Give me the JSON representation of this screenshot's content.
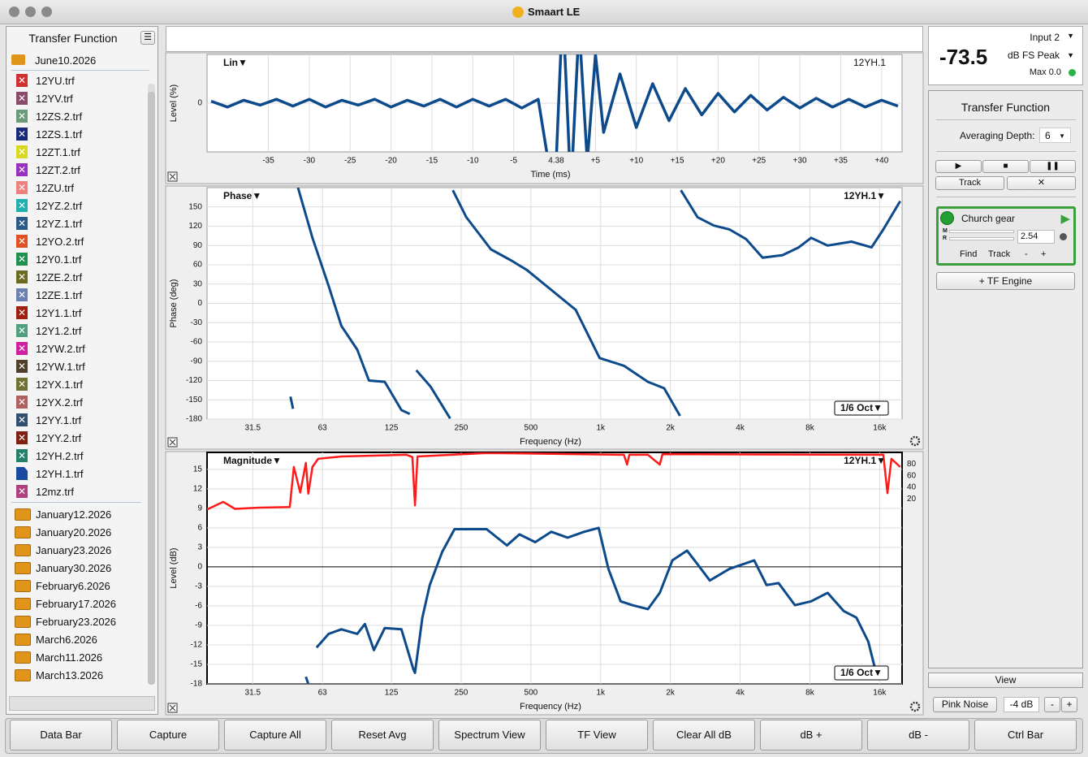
{
  "window": {
    "title": "Smaart LE"
  },
  "sidebar": {
    "title": "Transfer Function",
    "open_folder": "June10.2026",
    "files": [
      {
        "name": "12YU.trf",
        "color": "#d03030"
      },
      {
        "name": "12YV.trf",
        "color": "#8a4a6a"
      },
      {
        "name": "12ZS.2.trf",
        "color": "#6a9a7a"
      },
      {
        "name": "12ZS.1.trf",
        "color": "#1a2a7a"
      },
      {
        "name": "12ZT.1.trf",
        "color": "#d8d820"
      },
      {
        "name": "12ZT.2.trf",
        "color": "#9a30c0"
      },
      {
        "name": "12ZU.trf",
        "color": "#f08080"
      },
      {
        "name": "12YZ.2.trf",
        "color": "#20b0b0"
      },
      {
        "name": "12YZ.1.trf",
        "color": "#2a5a8a"
      },
      {
        "name": "12YO.2.trf",
        "color": "#e05020"
      },
      {
        "name": "12Y0.1.trf",
        "color": "#209050"
      },
      {
        "name": "12ZE.2.trf",
        "color": "#6a6a20"
      },
      {
        "name": "12ZE.1.trf",
        "color": "#6a80b0"
      },
      {
        "name": "12Y1.1.trf",
        "color": "#a02010"
      },
      {
        "name": "12Y1.2.trf",
        "color": "#50a080"
      },
      {
        "name": "12YW.2.trf",
        "color": "#d020a0"
      },
      {
        "name": "12YW.1.trf",
        "color": "#50402a"
      },
      {
        "name": "12YX.1.trf",
        "color": "#707030"
      },
      {
        "name": "12YX.2.trf",
        "color": "#b06060"
      },
      {
        "name": "12YY.1.trf",
        "color": "#305070"
      },
      {
        "name": "12YY.2.trf",
        "color": "#802010"
      },
      {
        "name": "12YH.2.trf",
        "color": "#20806a"
      },
      {
        "name": "12YH.1.trf",
        "color": "#1a4aa0"
      },
      {
        "name": "12mz.trf",
        "color": "#b04080"
      }
    ],
    "folders": [
      "January12.2026",
      "January20.2026",
      "January23.2026",
      "January30.2026",
      "February6.2026",
      "February17.2026",
      "February23.2026",
      "March6.2026",
      "March11.2026",
      "March13.2026"
    ]
  },
  "meters": {
    "input": "Input 2",
    "level": -73.5,
    "unit": "dB FS Peak",
    "max": "Max 0.0"
  },
  "control_panel": {
    "title": "Transfer Function",
    "averaging_label": "Averaging Depth:",
    "averaging_value": 6,
    "track_button": "Track",
    "engine": {
      "name": "Church gear",
      "m": "M",
      "r": "R",
      "delay": 2.54,
      "find": "Find",
      "track": "Track",
      "minus": "-",
      "plus": "+"
    },
    "add_engine": "+ TF Engine",
    "view": "View",
    "generator": "Pink Noise",
    "gen_level": "-4 dB",
    "gen_minus": "-",
    "gen_plus": "+"
  },
  "toolbar": [
    "Data Bar",
    "Capture",
    "Capture All",
    "Reset Avg",
    "Spectrum View",
    "TF View",
    "Clear All dB",
    "dB +",
    "dB -",
    "Ctrl Bar"
  ],
  "impulse": {
    "type": "line",
    "mode": "Lin▼",
    "trace": "12YH.1",
    "y_label": "Level (%)",
    "x_label": "Time (ms)",
    "marker": "4.38",
    "color": "#0d4a8c",
    "xlim": [
      -42.5,
      42.5
    ],
    "xticks": [
      -35,
      -30,
      -25,
      -20,
      -15,
      -10,
      -5,
      {
        "value": 5,
        "label": "+5"
      },
      {
        "value": 10,
        "label": "+10"
      },
      {
        "value": 15,
        "label": "+15"
      },
      {
        "value": 20,
        "label": "+20"
      },
      {
        "value": 25,
        "label": "+25"
      },
      {
        "value": 30,
        "label": "+30"
      },
      {
        "value": 35,
        "label": "+35"
      },
      {
        "value": 40,
        "label": "+40"
      }
    ],
    "ylim": [
      -50,
      50
    ],
    "yticks": [
      0
    ],
    "x": [
      -42,
      -40,
      -38,
      -36,
      -34,
      -32,
      -30,
      -28,
      -26,
      -24,
      -22,
      -20,
      -18,
      -16,
      -14,
      -12,
      -10,
      -8,
      -6,
      -4,
      -2,
      0,
      1,
      2,
      3,
      4,
      5,
      6,
      8,
      10,
      12,
      14,
      16,
      18,
      20,
      22,
      24,
      26,
      28,
      30,
      32,
      34,
      36,
      38,
      40,
      42
    ],
    "values": [
      2,
      -4,
      3,
      -2,
      4,
      -3,
      4,
      -4,
      3,
      -2,
      4,
      -4,
      3,
      -3,
      4,
      -4,
      4,
      -3,
      4,
      -5,
      4,
      -100,
      100,
      -90,
      80,
      -60,
      50,
      -30,
      30,
      -25,
      20,
      -18,
      15,
      -12,
      10,
      -9,
      8,
      -7,
      6,
      -5,
      5,
      -4,
      4,
      -4,
      3,
      -3
    ]
  },
  "phase": {
    "type": "line",
    "mode": "Phase▼",
    "trace": "12YH.1▼",
    "smoothing": "1/6 Oct▼",
    "y_label": "Phase (deg)",
    "x_label": "Frequency (Hz)",
    "log_x": true,
    "color": "#0d4a8c",
    "xlim": [
      20,
      20000
    ],
    "xticks": [
      31.5,
      63,
      125,
      250,
      500,
      {
        "value": 1000,
        "label": "1k"
      },
      {
        "value": 2000,
        "label": "2k"
      },
      {
        "value": 4000,
        "label": "4k"
      },
      {
        "value": 8000,
        "label": "8k"
      },
      {
        "value": 16000,
        "label": "16k"
      }
    ],
    "ylim": [
      -180,
      180
    ],
    "yticks": [
      150,
      120,
      90,
      60,
      30,
      0,
      -30,
      -60,
      -90,
      -120,
      -150,
      -180
    ],
    "x": [
      45.8,
      47,
      null,
      49.4,
      57,
      67,
      76,
      89,
      100,
      117,
      138,
      150,
      null,
      160,
      184,
      208,
      224,
      null,
      230,
      263,
      336,
      410,
      480,
      612,
      780,
      990,
      1260,
      1600,
      1880,
      2200,
      null,
      2220,
      2620,
      3080,
      3600,
      4240,
      5000,
      6100,
      7160,
      8100,
      9540,
      12100,
      14760,
      16600,
      19640
    ],
    "values": [
      -145,
      -164,
      null,
      180,
      102,
      27,
      -35,
      -72,
      -120,
      -122,
      -166,
      -172,
      null,
      -104,
      -129,
      -160,
      -179,
      null,
      176,
      134,
      84,
      67,
      52,
      21,
      -10,
      -85,
      -97,
      -122,
      -132,
      -175,
      null,
      176,
      134,
      121,
      115,
      100,
      71,
      75,
      87,
      102,
      90,
      96,
      87,
      115,
      159
    ]
  },
  "magnitude": {
    "type": "line",
    "mode": "Magnitude▼",
    "trace": "12YH.1▼",
    "smoothing": "1/6 Oct▼",
    "y_label": "Level (dB)",
    "x_label": "Frequency (Hz)",
    "log_x": true,
    "xlim": [
      20,
      20000
    ],
    "xticks": [
      31.5,
      63,
      125,
      250,
      500,
      {
        "value": 1000,
        "label": "1k"
      },
      {
        "value": 2000,
        "label": "2k"
      },
      {
        "value": 4000,
        "label": "4k"
      },
      {
        "value": 8000,
        "label": "8k"
      },
      {
        "value": 16000,
        "label": "16k"
      }
    ],
    "ylim": [
      -18,
      17.6
    ],
    "yticks": [
      15,
      12,
      9,
      6,
      3,
      0,
      -3,
      -6,
      -9,
      -12,
      -15,
      -18
    ],
    "y2lim": [
      -298,
      100
    ],
    "y2ticks": [
      80,
      60,
      40,
      20
    ],
    "series": [
      {
        "color": "#ff1a1a",
        "axis": "y2",
        "x": [
          20,
          23.5,
          26.4,
          33.7,
          45.5,
          47.4,
          50.5,
          53.4,
          54.7,
          57,
          60.3,
          76,
          145,
          154,
          158,
          162,
          322,
          1260,
          1300,
          1330,
          1600,
          1800,
          1850,
          16600,
          17300,
          18000,
          19640
        ],
        "values": [
          2,
          15,
          3,
          5,
          6,
          75,
          31,
          82,
          29,
          75,
          89,
          93,
          96,
          92,
          9,
          93,
          99,
          96,
          79,
          96,
          96,
          79,
          97,
          96,
          30,
          89,
          75
        ]
      },
      {
        "color": "#0d4a8c",
        "x": [
          53.4,
          54.7,
          null,
          59.4,
          67,
          76,
          89,
          96,
          105,
          117,
          138,
          156,
          158,
          170,
          183,
          207,
          234,
          322,
          394,
          446,
          522,
          612,
          720,
          850,
          980,
          1080,
          1220,
          1370,
          1600,
          1800,
          2040,
          2360,
          2620,
          2960,
          3600,
          4600,
          5200,
          5860,
          6900,
          8100,
          9540,
          11200,
          12700,
          14300,
          15200
        ],
        "values": [
          -16.9,
          -18,
          null,
          -12.4,
          -10.3,
          -9.6,
          -10.3,
          -8.8,
          -12.8,
          -9.4,
          -9.6,
          -15.9,
          -16.3,
          -7.8,
          -2.8,
          2.3,
          5.8,
          5.8,
          3.3,
          5,
          3.8,
          5.4,
          4.5,
          5.4,
          6,
          -0.3,
          -5.3,
          -5.9,
          -6.5,
          -4,
          1,
          2.5,
          0.4,
          -2.1,
          -0.3,
          1,
          -2.8,
          -2.5,
          -5.9,
          -5.3,
          -4,
          -6.8,
          -7.8,
          -11.5,
          -15.3
        ]
      }
    ]
  }
}
